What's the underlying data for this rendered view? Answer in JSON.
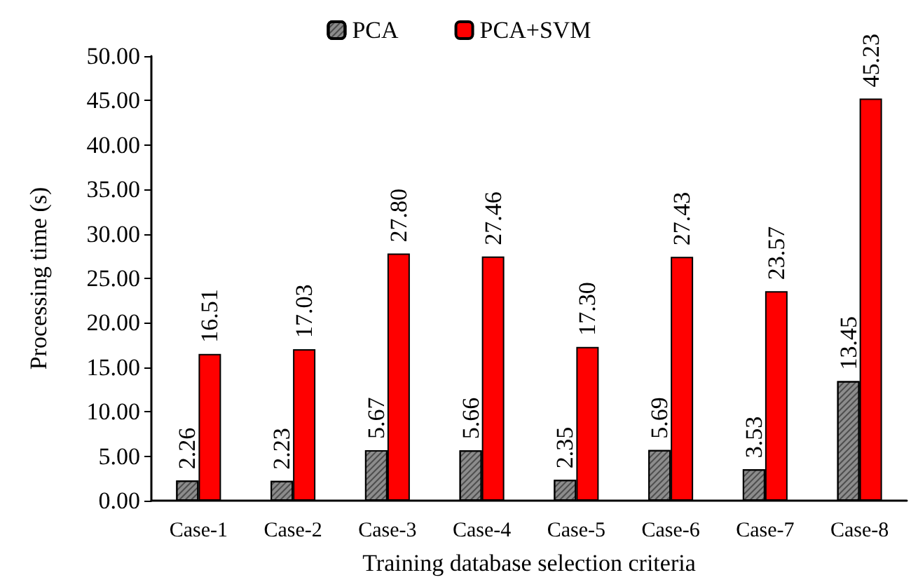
{
  "chart_data": {
    "type": "bar",
    "xlabel": "Training database selection criteria",
    "ylabel": "Processing time (s)",
    "categories": [
      "Case-1",
      "Case-2",
      "Case-3",
      "Case-4",
      "Case-5",
      "Case-6",
      "Case-7",
      "Case-8"
    ],
    "series": [
      {
        "name": "PCA",
        "color": "#8c8c8c",
        "values": [
          2.26,
          2.23,
          5.67,
          5.66,
          2.35,
          5.69,
          3.53,
          13.45
        ],
        "value_labels": [
          "2.26",
          "2.23",
          "5.67",
          "5.66",
          "2.35",
          "5.69",
          "3.53",
          "13.45"
        ]
      },
      {
        "name": "PCA+SVM",
        "color": "#ff0000",
        "values": [
          16.51,
          17.03,
          27.8,
          27.46,
          17.3,
          27.43,
          23.57,
          45.23
        ],
        "value_labels": [
          "16.51",
          "17.03",
          "27.80",
          "27.46",
          "17.30",
          "27.43",
          "23.57",
          "45.23"
        ]
      }
    ],
    "ylim": [
      0,
      50
    ],
    "yticks": [
      {
        "value": 0,
        "label": "0.00"
      },
      {
        "value": 5,
        "label": "5.00"
      },
      {
        "value": 10,
        "label": "10.00"
      },
      {
        "value": 15,
        "label": "15.00"
      },
      {
        "value": 20,
        "label": "20.00"
      },
      {
        "value": 25,
        "label": "25.00"
      },
      {
        "value": 30,
        "label": "30.00"
      },
      {
        "value": 35,
        "label": "35.00"
      },
      {
        "value": 40,
        "label": "40.00"
      },
      {
        "value": 45,
        "label": "45.00"
      },
      {
        "value": 50,
        "label": "50.00"
      }
    ],
    "grid": false,
    "legend": "top"
  }
}
